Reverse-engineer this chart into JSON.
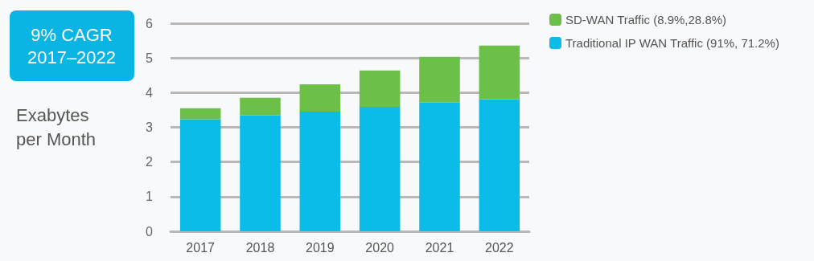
{
  "chart_data": {
    "type": "bar",
    "stacked": true,
    "annotations": [
      "9% CAGR\n2017–2022"
    ],
    "ylabel": "Exabytes\nper Month",
    "categories": [
      "2017",
      "2018",
      "2019",
      "2020",
      "2021",
      "2022"
    ],
    "series": [
      {
        "name": "Traditional IP WAN Traffic (91%, 71.2%)",
        "color": "#0bbbe8",
        "values": [
          3.23,
          3.35,
          3.45,
          3.59,
          3.71,
          3.81
        ]
      },
      {
        "name": "SD-WAN Traffic (8.9%,28.8%)",
        "color": "#6cbf47",
        "values": [
          0.32,
          0.5,
          0.79,
          1.05,
          1.32,
          1.55
        ]
      }
    ],
    "ylim": [
      0,
      6
    ],
    "yticks": [
      0,
      1,
      2,
      3,
      4,
      5,
      6
    ],
    "grid": "y",
    "legend": "top right"
  }
}
